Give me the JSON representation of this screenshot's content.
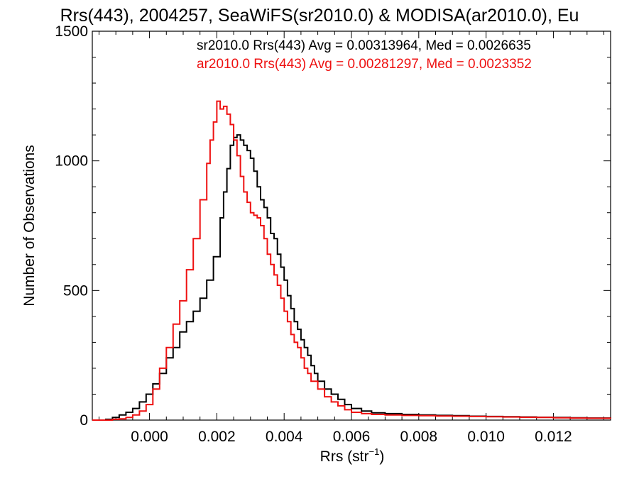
{
  "chart_data": {
    "type": "line",
    "title": "Rrs(443), 2004257, SeaWiFS(sr2010.0) & MODISA(ar2010.0), Eu",
    "xlabel_main": "Rrs (str",
    "xlabel_sup": "−1",
    "xlabel_close": ")",
    "ylabel": "Number of Observations",
    "xlim": [
      -0.0017,
      0.0137
    ],
    "ylim": [
      0,
      1500
    ],
    "xticks": [
      {
        "value": 0.0,
        "label": "0.000"
      },
      {
        "value": 0.002,
        "label": "0.002"
      },
      {
        "value": 0.004,
        "label": "0.004"
      },
      {
        "value": 0.006,
        "label": "0.006"
      },
      {
        "value": 0.008,
        "label": "0.008"
      },
      {
        "value": 0.01,
        "label": "0.010"
      },
      {
        "value": 0.012,
        "label": "0.012"
      }
    ],
    "yticks": [
      {
        "value": 0,
        "label": "0"
      },
      {
        "value": 500,
        "label": "500"
      },
      {
        "value": 1000,
        "label": "1000"
      },
      {
        "value": 1500,
        "label": "1500"
      }
    ],
    "grid": false,
    "legend": [
      {
        "text": "sr2010.0 Rrs(443) Avg = 0.00313964, Med = 0.0026635",
        "color": "#000000"
      },
      {
        "text": "ar2010.0 Rrs(443) Avg = 0.00281297, Med = 0.0023352",
        "color": "#ee1111"
      }
    ],
    "series": [
      {
        "color": "#000000",
        "points": [
          [
            -0.0017,
            0
          ],
          [
            -0.0013,
            3
          ],
          [
            -0.0011,
            10
          ],
          [
            -0.0009,
            20
          ],
          [
            -0.0007,
            30
          ],
          [
            -0.0005,
            45
          ],
          [
            -0.0003,
            70
          ],
          [
            -0.0001,
            100
          ],
          [
            0.0001,
            140
          ],
          [
            0.0003,
            180
          ],
          [
            0.0005,
            240
          ],
          [
            0.0007,
            280
          ],
          [
            0.0009,
            340
          ],
          [
            0.0011,
            380
          ],
          [
            0.0013,
            420
          ],
          [
            0.0015,
            470
          ],
          [
            0.0017,
            540
          ],
          [
            0.0019,
            630
          ],
          [
            0.0021,
            780
          ],
          [
            0.0022,
            880
          ],
          [
            0.0023,
            970
          ],
          [
            0.0024,
            1060
          ],
          [
            0.0025,
            1090
          ],
          [
            0.0026,
            1100
          ],
          [
            0.0027,
            1080
          ],
          [
            0.0028,
            1060
          ],
          [
            0.0029,
            1040
          ],
          [
            0.003,
            1010
          ],
          [
            0.0031,
            960
          ],
          [
            0.0032,
            900
          ],
          [
            0.0033,
            850
          ],
          [
            0.0034,
            820
          ],
          [
            0.0035,
            780
          ],
          [
            0.0036,
            720
          ],
          [
            0.0037,
            700
          ],
          [
            0.0038,
            640
          ],
          [
            0.0039,
            590
          ],
          [
            0.004,
            540
          ],
          [
            0.0041,
            480
          ],
          [
            0.0042,
            430
          ],
          [
            0.0043,
            380
          ],
          [
            0.0044,
            350
          ],
          [
            0.0045,
            310
          ],
          [
            0.0046,
            280
          ],
          [
            0.0047,
            250
          ],
          [
            0.0048,
            210
          ],
          [
            0.0049,
            180
          ],
          [
            0.005,
            150
          ],
          [
            0.0052,
            120
          ],
          [
            0.0054,
            100
          ],
          [
            0.0056,
            80
          ],
          [
            0.0058,
            60
          ],
          [
            0.006,
            45
          ],
          [
            0.0063,
            35
          ],
          [
            0.0066,
            28
          ],
          [
            0.007,
            25
          ],
          [
            0.0075,
            22
          ],
          [
            0.008,
            20
          ],
          [
            0.0085,
            18
          ],
          [
            0.009,
            17
          ],
          [
            0.0095,
            15
          ],
          [
            0.01,
            14
          ],
          [
            0.0105,
            13
          ],
          [
            0.011,
            12
          ],
          [
            0.0115,
            11
          ],
          [
            0.012,
            10
          ],
          [
            0.0125,
            9
          ],
          [
            0.013,
            8
          ],
          [
            0.0137,
            7
          ]
        ]
      },
      {
        "color": "#ee1111",
        "points": [
          [
            -0.0017,
            0
          ],
          [
            -0.0013,
            0
          ],
          [
            -0.0011,
            3
          ],
          [
            -0.0009,
            5
          ],
          [
            -0.0007,
            10
          ],
          [
            -0.0005,
            20
          ],
          [
            -0.0003,
            35
          ],
          [
            -0.0001,
            60
          ],
          [
            0.0001,
            120
          ],
          [
            0.0003,
            200
          ],
          [
            0.0005,
            280
          ],
          [
            0.0007,
            370
          ],
          [
            0.0009,
            460
          ],
          [
            0.0011,
            580
          ],
          [
            0.0013,
            700
          ],
          [
            0.0015,
            850
          ],
          [
            0.0017,
            990
          ],
          [
            0.0018,
            1080
          ],
          [
            0.0019,
            1150
          ],
          [
            0.002,
            1230
          ],
          [
            0.0021,
            1200
          ],
          [
            0.0022,
            1210
          ],
          [
            0.0023,
            1180
          ],
          [
            0.0024,
            1140
          ],
          [
            0.0025,
            1080
          ],
          [
            0.0026,
            1020
          ],
          [
            0.0027,
            940
          ],
          [
            0.0028,
            880
          ],
          [
            0.0029,
            840
          ],
          [
            0.003,
            800
          ],
          [
            0.0031,
            790
          ],
          [
            0.0032,
            780
          ],
          [
            0.0033,
            750
          ],
          [
            0.0034,
            700
          ],
          [
            0.0035,
            640
          ],
          [
            0.0036,
            600
          ],
          [
            0.0037,
            560
          ],
          [
            0.0038,
            520
          ],
          [
            0.0039,
            470
          ],
          [
            0.004,
            420
          ],
          [
            0.0041,
            380
          ],
          [
            0.0042,
            330
          ],
          [
            0.0043,
            300
          ],
          [
            0.0044,
            280
          ],
          [
            0.0045,
            240
          ],
          [
            0.0046,
            200
          ],
          [
            0.0047,
            180
          ],
          [
            0.0048,
            150
          ],
          [
            0.005,
            120
          ],
          [
            0.0052,
            90
          ],
          [
            0.0054,
            70
          ],
          [
            0.0056,
            55
          ],
          [
            0.0058,
            40
          ],
          [
            0.006,
            30
          ],
          [
            0.0063,
            25
          ],
          [
            0.0066,
            22
          ],
          [
            0.007,
            20
          ],
          [
            0.0075,
            18
          ],
          [
            0.008,
            17
          ],
          [
            0.0085,
            16
          ],
          [
            0.009,
            15
          ],
          [
            0.0095,
            14
          ],
          [
            0.01,
            13
          ],
          [
            0.0105,
            12
          ],
          [
            0.011,
            11
          ],
          [
            0.0115,
            10
          ],
          [
            0.012,
            9
          ],
          [
            0.0125,
            8
          ],
          [
            0.013,
            7
          ],
          [
            0.0137,
            6
          ]
        ]
      }
    ]
  }
}
